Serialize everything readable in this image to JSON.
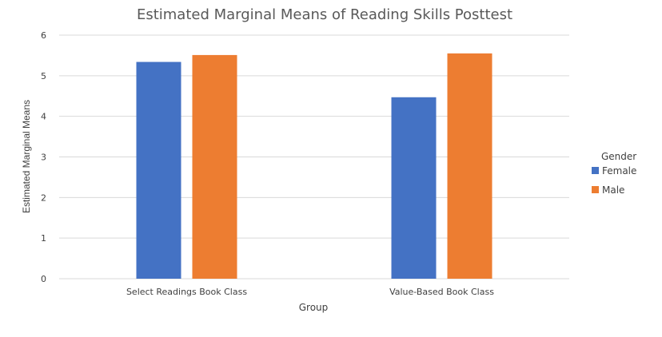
{
  "chart_data": {
    "type": "bar",
    "title": "Estimated Marginal Means of Reading Skills Posttest",
    "xlabel": "Group",
    "ylabel": "Estimated Marginal Means",
    "categories": [
      "Select Readings Book Class",
      "Value-Based Book Class"
    ],
    "series": [
      {
        "name": "Female",
        "values": [
          5.34,
          4.47
        ],
        "color": "#4472C4"
      },
      {
        "name": "Male",
        "values": [
          5.51,
          5.55
        ],
        "color": "#ED7D31"
      }
    ],
    "ylim": [
      0,
      6
    ],
    "yticks": [
      0,
      1,
      2,
      3,
      4,
      5,
      6
    ],
    "grid": true,
    "legend": {
      "title": "Gender",
      "placement": "right"
    }
  }
}
